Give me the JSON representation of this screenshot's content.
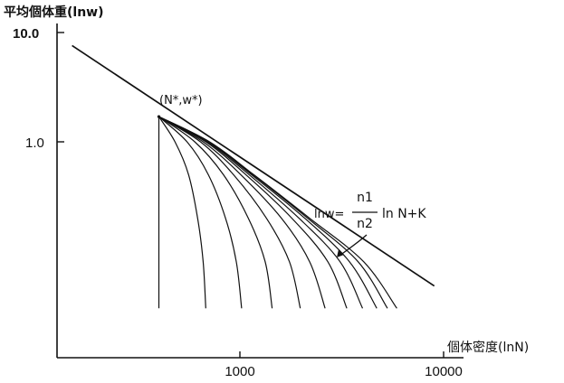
{
  "chart_data": {
    "type": "line",
    "ylabel": "平均個体重(lnw)",
    "xlabel": "個体密度(lnN)",
    "x_scale": "log",
    "y_scale": "log",
    "x_ticks": [
      "1000",
      "10000"
    ],
    "y_ticks": [
      "10.0",
      "1.0"
    ],
    "grid": false,
    "point_label": "(N*,w*)",
    "annotation": {
      "lhs": "lnw=",
      "numerator": "n1",
      "denominator": "n2",
      "rhs": "ln N+K"
    },
    "boundary_line": {
      "name": "lnw= n1/n2 ln N+K",
      "points": [
        [
          150,
          7.6
        ],
        [
          9000,
          0.048
        ]
      ]
    },
    "initial_point": {
      "N": 400,
      "w": 1.7
    },
    "curves": [
      {
        "points": [
          [
            400,
            1.7
          ],
          [
            400,
            0.03
          ]
        ]
      },
      {
        "points": [
          [
            400,
            1.7
          ],
          [
            480,
            1.0
          ],
          [
            560,
            0.5
          ],
          [
            620,
            0.2
          ],
          [
            660,
            0.08
          ],
          [
            680,
            0.03
          ]
        ]
      },
      {
        "points": [
          [
            400,
            1.7
          ],
          [
            550,
            1.0
          ],
          [
            700,
            0.5
          ],
          [
            850,
            0.2
          ],
          [
            960,
            0.08
          ],
          [
            1020,
            0.03
          ]
        ]
      },
      {
        "points": [
          [
            400,
            1.7
          ],
          [
            600,
            1.0
          ],
          [
            830,
            0.5
          ],
          [
            1100,
            0.2
          ],
          [
            1330,
            0.08
          ],
          [
            1440,
            0.03
          ]
        ]
      },
      {
        "points": [
          [
            400,
            1.7
          ],
          [
            640,
            1.0
          ],
          [
            930,
            0.5
          ],
          [
            1350,
            0.2
          ],
          [
            1750,
            0.08
          ],
          [
            1980,
            0.03
          ]
        ]
      },
      {
        "points": [
          [
            400,
            1.7
          ],
          [
            660,
            1.0
          ],
          [
            1010,
            0.5
          ],
          [
            1600,
            0.2
          ],
          [
            2200,
            0.08
          ],
          [
            2620,
            0.03
          ]
        ]
      },
      {
        "points": [
          [
            400,
            1.7
          ],
          [
            680,
            1.0
          ],
          [
            1070,
            0.5
          ],
          [
            1800,
            0.2
          ],
          [
            2700,
            0.08
          ],
          [
            3350,
            0.03
          ]
        ]
      },
      {
        "points": [
          [
            400,
            1.7
          ],
          [
            690,
            1.0
          ],
          [
            1110,
            0.5
          ],
          [
            1950,
            0.2
          ],
          [
            3100,
            0.08
          ],
          [
            4000,
            0.03
          ]
        ]
      },
      {
        "points": [
          [
            400,
            1.7
          ],
          [
            700,
            1.0
          ],
          [
            1140,
            0.5
          ],
          [
            2080,
            0.2
          ],
          [
            3450,
            0.08
          ],
          [
            4700,
            0.03
          ]
        ]
      },
      {
        "points": [
          [
            400,
            1.7
          ],
          [
            705,
            1.0
          ],
          [
            1160,
            0.5
          ],
          [
            2150,
            0.2
          ],
          [
            3800,
            0.08
          ],
          [
            5300,
            0.03
          ]
        ]
      },
      {
        "points": [
          [
            400,
            1.7
          ],
          [
            710,
            1.0
          ],
          [
            1170,
            0.5
          ],
          [
            2200,
            0.2
          ],
          [
            4050,
            0.08
          ],
          [
            5900,
            0.03
          ]
        ]
      }
    ]
  }
}
